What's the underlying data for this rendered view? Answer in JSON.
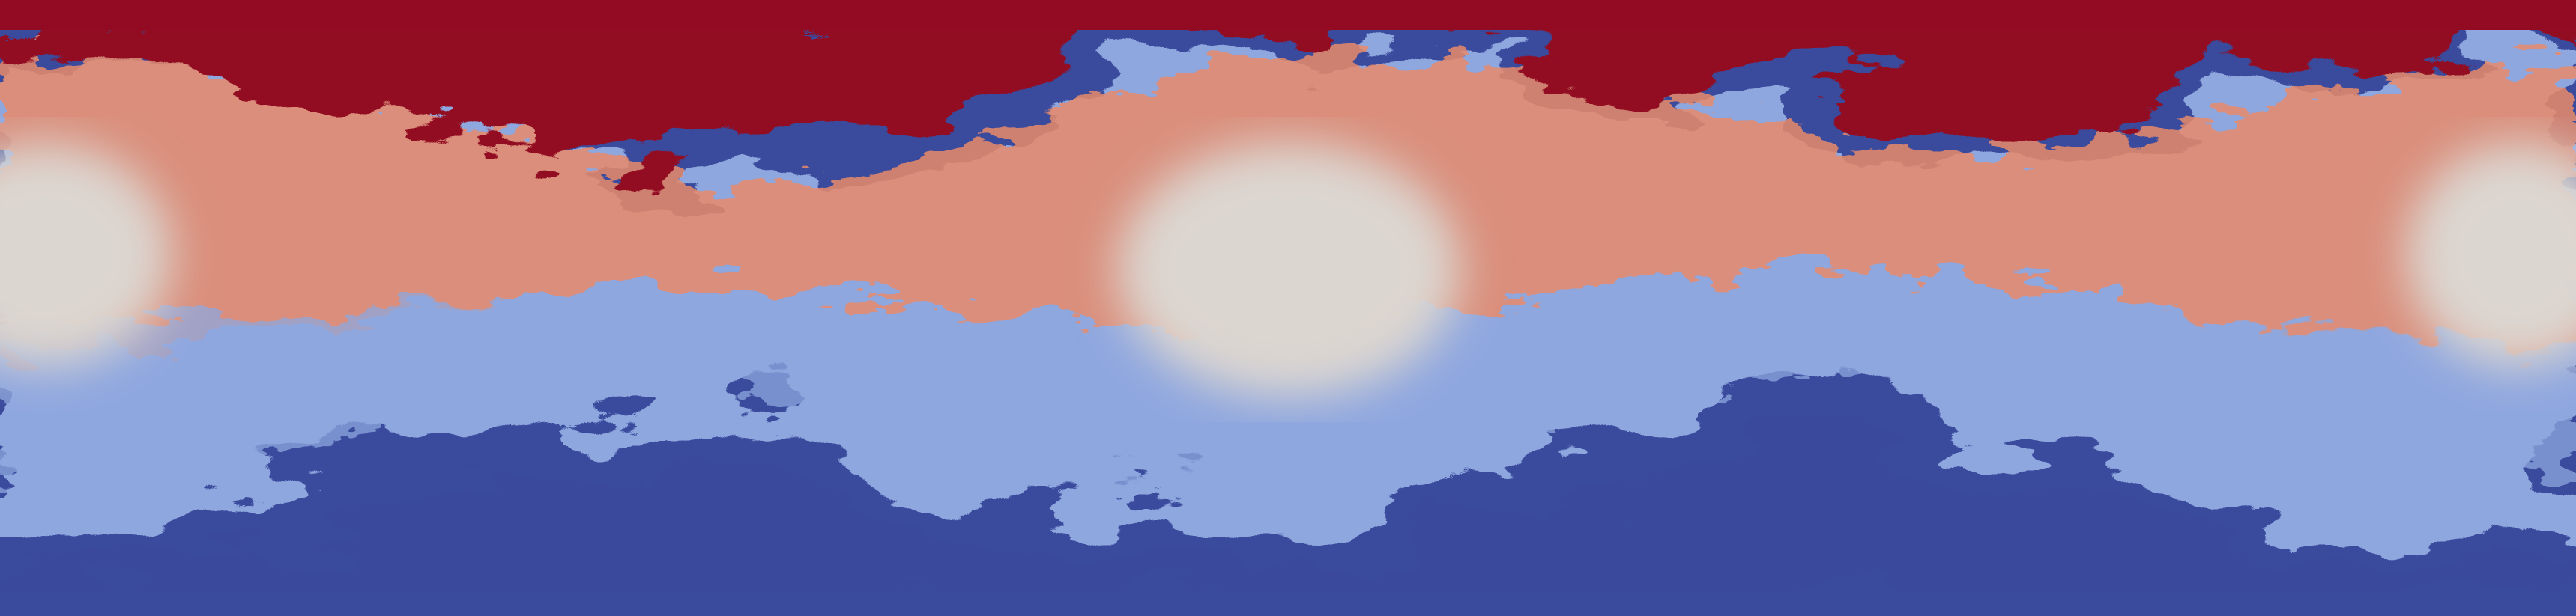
{
  "image": {
    "subject": "turbulent-mixing-field",
    "colormap": {
      "top_color": "#930b22",
      "warm_color": "#e8896a",
      "mid_color": "#dcd6d0",
      "cool_color": "#8fa7df",
      "bottom_color": "#3a4a9c"
    }
  }
}
